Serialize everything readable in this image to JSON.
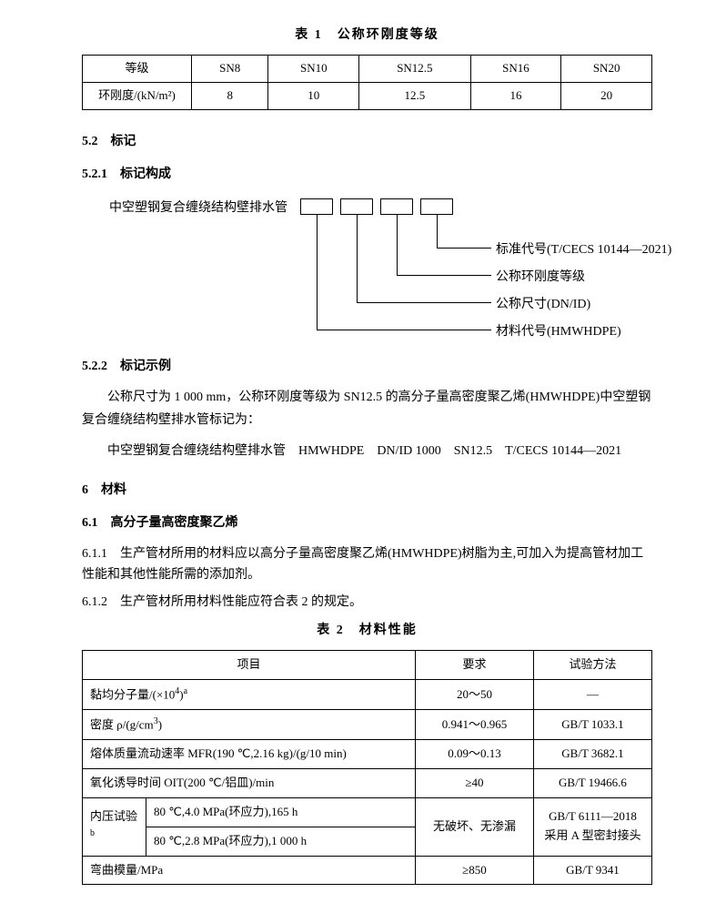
{
  "table1": {
    "title": "表 1　公称环刚度等级",
    "row1": [
      "等级",
      "SN8",
      "SN10",
      "SN12.5",
      "SN16",
      "SN20"
    ],
    "row2": [
      "环刚度/(kN/m²)",
      "8",
      "10",
      "12.5",
      "16",
      "20"
    ]
  },
  "s52": "5.2　标记",
  "s521": "5.2.1　标记构成",
  "diagram": {
    "leftLabel": "中空塑钢复合缠绕结构壁排水管",
    "labels": {
      "l1": "标准代号(T/CECS 10144—2021)",
      "l2": "公称环刚度等级",
      "l3": "公称尺寸(DN/ID)",
      "l4": "材料代号(HMWHDPE)"
    }
  },
  "s522": "5.2.2　标记示例",
  "p521a": "公称尺寸为 1 000 mm，公称环刚度等级为 SN12.5 的高分子量高密度聚乙烯(HMWHDPE)中空塑钢复合缠绕结构壁排水管标记为：",
  "p521b": "中空塑钢复合缠绕结构壁排水管　HMWHDPE　DN/ID 1000　SN12.5　T/CECS 10144—2021",
  "s6": "6　材料",
  "s61": "6.1　高分子量高密度聚乙烯",
  "c611": "6.1.1　生产管材所用的材料应以高分子量高密度聚乙烯(HMWHDPE)树脂为主,可加入为提高管材加工性能和其他性能所需的添加剂。",
  "c612": "6.1.2　生产管材所用材料性能应符合表 2 的规定。",
  "table2": {
    "title": "表 2　材料性能",
    "headers": {
      "item": "项目",
      "req": "要求",
      "method": "试验方法"
    },
    "rows": {
      "r1": {
        "item_html": "黏均分子量/(×10<sup>4</sup>)<sup>a</sup>",
        "req": "20～50",
        "method": "—"
      },
      "r2": {
        "item_html": "密度 ρ/(g/cm<sup>3</sup>)",
        "req": "0.941～0.965",
        "method": "GB/T 1033.1"
      },
      "r3": {
        "item": "熔体质量流动速率 MFR(190 ℃,2.16 kg)/(g/10 min)",
        "req": "0.09～0.13",
        "method": "GB/T 3682.1"
      },
      "r4": {
        "item": "氧化诱导时间 OIT(200 ℃/铝皿)/min",
        "req": "≥40",
        "method": "GB/T 19466.6"
      },
      "r5": {
        "label_html": "内压试验<sup>b</sup>",
        "a": "80 ℃,4.0 MPa(环应力),165 h",
        "b": "80 ℃,2.8 MPa(环应力),1 000 h",
        "req": "无破坏、无渗漏",
        "method_html": "GB/T 6111—2018<br>采用 A 型密封接头"
      },
      "r6": {
        "item": "弯曲模量/MPa",
        "req": "≥850",
        "method": "GB/T 9341"
      }
    }
  }
}
